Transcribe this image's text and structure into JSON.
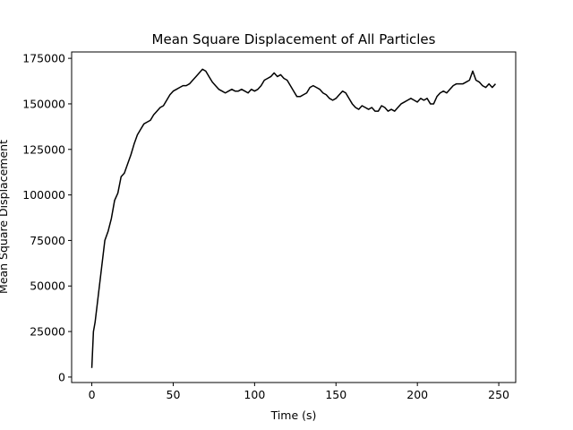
{
  "chart_data": {
    "type": "line",
    "title": "Mean Square Displacement of All Particles",
    "x_label": "Time (s)",
    "y_label": "Mean Square Displacement",
    "color": "#000000",
    "x": [
      0,
      1,
      2,
      4,
      6,
      8,
      10,
      12,
      14,
      16,
      18,
      20,
      22,
      24,
      26,
      28,
      30,
      32,
      34,
      36,
      38,
      40,
      42,
      44,
      46,
      48,
      50,
      52,
      54,
      56,
      58,
      60,
      62,
      64,
      66,
      68,
      70,
      72,
      74,
      76,
      78,
      80,
      82,
      84,
      86,
      88,
      90,
      92,
      94,
      96,
      98,
      100,
      102,
      104,
      106,
      108,
      110,
      112,
      114,
      116,
      118,
      120,
      122,
      124,
      126,
      128,
      130,
      132,
      134,
      136,
      138,
      140,
      142,
      144,
      146,
      148,
      150,
      152,
      154,
      156,
      158,
      160,
      162,
      164,
      166,
      168,
      170,
      172,
      174,
      176,
      178,
      180,
      182,
      184,
      186,
      188,
      190,
      192,
      194,
      196,
      198,
      200,
      202,
      204,
      206,
      208,
      210,
      212,
      214,
      216,
      218,
      220,
      222,
      224,
      226,
      228,
      230,
      232,
      234,
      236,
      238,
      240,
      242,
      244,
      246,
      248
    ],
    "values": [
      5000,
      25000,
      30000,
      45000,
      60000,
      75000,
      80000,
      87000,
      97000,
      101000,
      110000,
      112000,
      117000,
      122000,
      128000,
      133000,
      136000,
      139000,
      140000,
      141000,
      144000,
      146000,
      148000,
      149000,
      152000,
      155000,
      157000,
      158000,
      159000,
      160000,
      160000,
      161000,
      163000,
      165000,
      167000,
      169000,
      168000,
      165000,
      162000,
      160000,
      158000,
      157000,
      156000,
      157000,
      158000,
      157000,
      157000,
      158000,
      157000,
      156000,
      158000,
      157000,
      158000,
      160000,
      163000,
      164000,
      165000,
      167000,
      165000,
      166000,
      164000,
      163000,
      160000,
      157000,
      154000,
      154000,
      155000,
      156000,
      159000,
      160000,
      159000,
      158000,
      156000,
      155000,
      153000,
      152000,
      153000,
      155000,
      157000,
      156000,
      153000,
      150000,
      148000,
      147000,
      149000,
      148000,
      147000,
      148000,
      146000,
      146000,
      149000,
      148000,
      146000,
      147000,
      146000,
      148000,
      150000,
      151000,
      152000,
      153000,
      152000,
      151000,
      153000,
      152000,
      153000,
      150000,
      150000,
      154000,
      156000,
      157000,
      156000,
      158000,
      160000,
      161000,
      161000,
      161000,
      162000,
      163000,
      168000,
      163000,
      162000,
      160000,
      159000,
      161000,
      159000,
      161000
    ],
    "xlim": [
      -12.4,
      260.4
    ],
    "ylim": [
      -3000,
      178500
    ],
    "xticks": [
      0,
      50,
      100,
      150,
      200,
      250
    ],
    "yticks": [
      0,
      25000,
      50000,
      75000,
      100000,
      125000,
      150000,
      175000
    ]
  }
}
